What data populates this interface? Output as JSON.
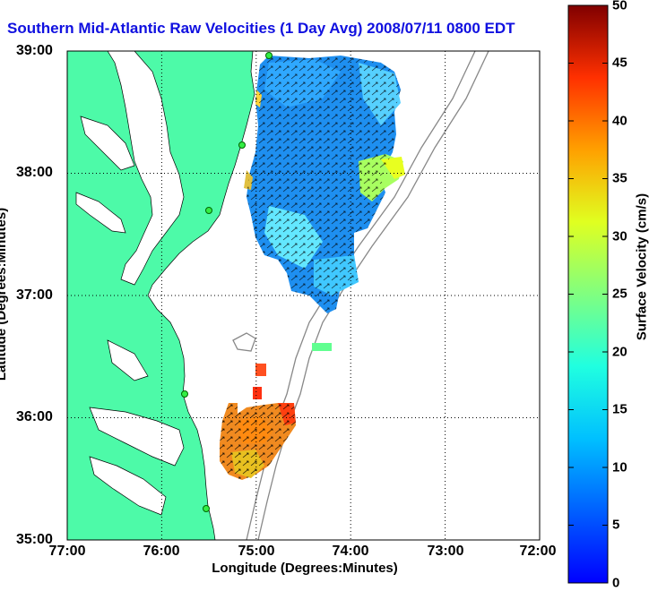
{
  "title": "Southern Mid-Atlantic Raw Velocities (1 Day Avg) 2008/07/11 0800 EDT",
  "axes": {
    "xlabel": "Longitude (Degrees:Minutes)",
    "ylabel": "Latitude (Degrees:Minutes)",
    "xticks": [
      "77:00",
      "76:00",
      "75:00",
      "74:00",
      "73:00",
      "72:00"
    ],
    "yticks": [
      "39:00",
      "38:00",
      "37:00",
      "36:00",
      "35:00"
    ]
  },
  "colorbar": {
    "label": "Surface Velocity (cm/s)",
    "ticks": [
      "50",
      "45",
      "40",
      "35",
      "30",
      "25",
      "20",
      "15",
      "10",
      "5",
      "0"
    ],
    "min": 0,
    "max": 50
  },
  "colors": {
    "land": "#4dfaa8",
    "title": "#1010e0",
    "grid": "#000000"
  }
}
